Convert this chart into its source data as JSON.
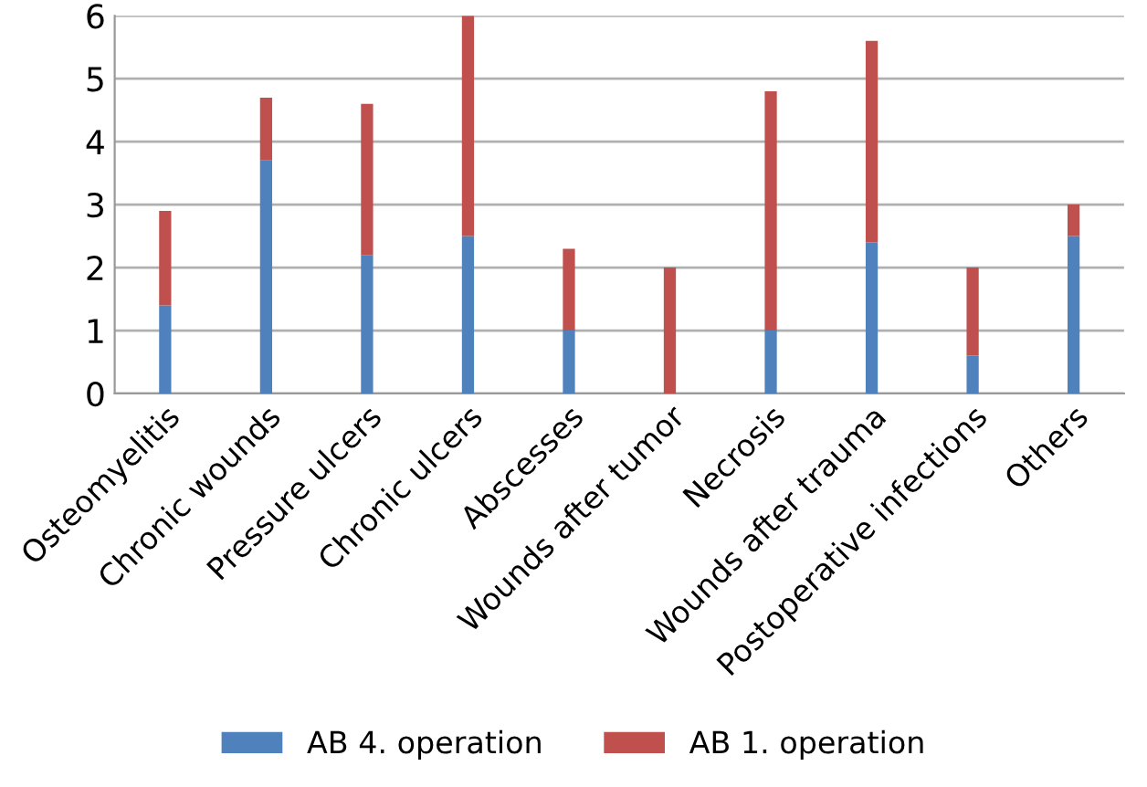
{
  "chart_data": {
    "type": "bar",
    "stacked": true,
    "categories": [
      "Osteomyelitis",
      "Chronic wounds",
      "Pressure ulcers",
      "Chronic ulcers",
      "Abscesses",
      "Wounds after tumor",
      "Necrosis",
      "Wounds after trauma",
      "Postoperative infections",
      "Others"
    ],
    "series": [
      {
        "name": "AB 4. operation",
        "color": "#4f81bd",
        "values": [
          1.4,
          3.7,
          2.2,
          2.5,
          1.0,
          0,
          1.0,
          2.4,
          0.6,
          2.5
        ]
      },
      {
        "name": "AB 1. operation",
        "color": "#c0504d",
        "values": [
          1.5,
          1.0,
          2.4,
          3.5,
          1.3,
          2.0,
          3.8,
          3.2,
          1.4,
          0.5
        ]
      }
    ],
    "ylim": [
      0,
      6
    ],
    "yticks": [
      0,
      1,
      2,
      3,
      4,
      5,
      6
    ],
    "grid": "y",
    "legend": "bottom"
  }
}
